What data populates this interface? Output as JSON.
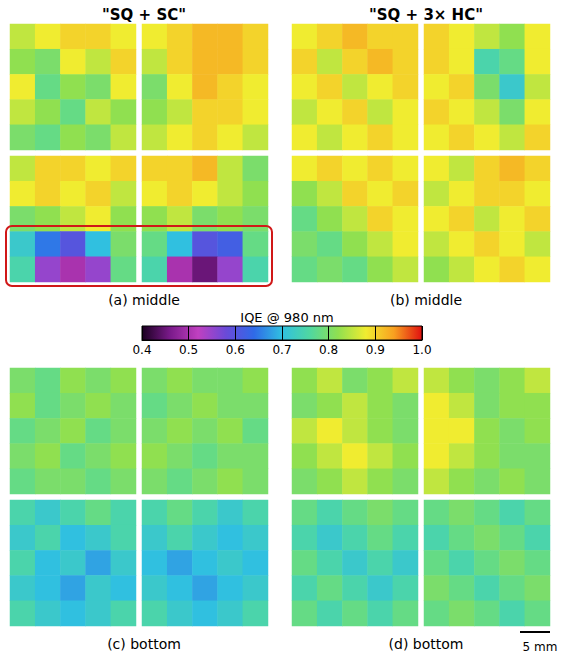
{
  "chart_data": {
    "type": "heatmap",
    "column_titles": [
      "\"SQ + SC\"",
      "\"SQ + 3× HC\""
    ],
    "panels": [
      {
        "label": "(a) middle",
        "cells": [
          [
            [
              0.85,
              0.88,
              0.9,
              0.9,
              0.88
            ],
            [
              0.82,
              0.8,
              0.88,
              0.85,
              0.9
            ],
            [
              0.88,
              0.78,
              0.82,
              0.8,
              0.88
            ],
            [
              0.85,
              0.82,
              0.78,
              0.85,
              0.82
            ],
            [
              0.8,
              0.78,
              0.82,
              0.8,
              0.85
            ]
          ],
          [
            [
              0.88,
              0.9,
              0.92,
              0.92,
              0.9
            ],
            [
              0.85,
              0.9,
              0.92,
              0.92,
              0.9
            ],
            [
              0.8,
              0.88,
              0.92,
              0.9,
              0.88
            ],
            [
              0.82,
              0.85,
              0.9,
              0.9,
              0.88
            ],
            [
              0.85,
              0.88,
              0.9,
              0.88,
              0.85
            ]
          ],
          [
            [
              0.85,
              0.9,
              0.9,
              0.88,
              0.9
            ],
            [
              0.88,
              0.9,
              0.88,
              0.9,
              0.85
            ],
            [
              0.8,
              0.82,
              0.85,
              0.88,
              0.82
            ],
            [
              0.72,
              0.65,
              0.6,
              0.7,
              0.8
            ],
            [
              0.75,
              0.55,
              0.5,
              0.55,
              0.78
            ]
          ],
          [
            [
              0.9,
              0.9,
              0.92,
              0.85,
              0.8
            ],
            [
              0.88,
              0.9,
              0.88,
              0.85,
              0.82
            ],
            [
              0.82,
              0.85,
              0.8,
              0.82,
              0.8
            ],
            [
              0.78,
              0.7,
              0.6,
              0.62,
              0.78
            ],
            [
              0.75,
              0.5,
              0.45,
              0.55,
              0.75
            ]
          ]
        ]
      },
      {
        "label": "(b) middle",
        "cells": [
          [
            [
              0.88,
              0.9,
              0.92,
              0.9,
              0.9
            ],
            [
              0.9,
              0.85,
              0.9,
              0.92,
              0.9
            ],
            [
              0.88,
              0.9,
              0.85,
              0.88,
              0.9
            ],
            [
              0.85,
              0.88,
              0.9,
              0.85,
              0.88
            ],
            [
              0.88,
              0.85,
              0.88,
              0.9,
              0.88
            ]
          ],
          [
            [
              0.9,
              0.88,
              0.85,
              0.82,
              0.88
            ],
            [
              0.9,
              0.88,
              0.75,
              0.78,
              0.88
            ],
            [
              0.88,
              0.9,
              0.8,
              0.72,
              0.85
            ],
            [
              0.9,
              0.88,
              0.85,
              0.8,
              0.88
            ],
            [
              0.88,
              0.9,
              0.88,
              0.85,
              0.9
            ]
          ],
          [
            [
              0.88,
              0.9,
              0.88,
              0.9,
              0.88
            ],
            [
              0.82,
              0.85,
              0.9,
              0.88,
              0.9
            ],
            [
              0.78,
              0.82,
              0.85,
              0.9,
              0.88
            ],
            [
              0.8,
              0.78,
              0.82,
              0.85,
              0.88
            ],
            [
              0.78,
              0.8,
              0.78,
              0.82,
              0.85
            ]
          ],
          [
            [
              0.88,
              0.85,
              0.9,
              0.92,
              0.9
            ],
            [
              0.85,
              0.88,
              0.9,
              0.9,
              0.88
            ],
            [
              0.88,
              0.9,
              0.85,
              0.88,
              0.9
            ],
            [
              0.85,
              0.88,
              0.9,
              0.88,
              0.85
            ],
            [
              0.82,
              0.85,
              0.88,
              0.9,
              0.88
            ]
          ]
        ]
      },
      {
        "label": "(c) bottom",
        "cells": [
          [
            [
              0.8,
              0.78,
              0.82,
              0.8,
              0.82
            ],
            [
              0.82,
              0.78,
              0.8,
              0.82,
              0.8
            ],
            [
              0.78,
              0.8,
              0.82,
              0.78,
              0.8
            ],
            [
              0.8,
              0.82,
              0.78,
              0.8,
              0.82
            ],
            [
              0.78,
              0.8,
              0.8,
              0.78,
              0.8
            ]
          ],
          [
            [
              0.8,
              0.82,
              0.8,
              0.8,
              0.82
            ],
            [
              0.78,
              0.8,
              0.82,
              0.8,
              0.8
            ],
            [
              0.8,
              0.82,
              0.8,
              0.82,
              0.78
            ],
            [
              0.82,
              0.8,
              0.78,
              0.8,
              0.8
            ],
            [
              0.8,
              0.78,
              0.8,
              0.82,
              0.8
            ]
          ],
          [
            [
              0.75,
              0.72,
              0.75,
              0.78,
              0.75
            ],
            [
              0.72,
              0.75,
              0.7,
              0.72,
              0.75
            ],
            [
              0.75,
              0.7,
              0.72,
              0.68,
              0.72
            ],
            [
              0.72,
              0.7,
              0.68,
              0.72,
              0.7
            ],
            [
              0.75,
              0.72,
              0.7,
              0.72,
              0.75
            ]
          ],
          [
            [
              0.75,
              0.78,
              0.75,
              0.72,
              0.75
            ],
            [
              0.72,
              0.75,
              0.72,
              0.7,
              0.72
            ],
            [
              0.7,
              0.68,
              0.7,
              0.72,
              0.7
            ],
            [
              0.72,
              0.7,
              0.68,
              0.7,
              0.72
            ],
            [
              0.75,
              0.72,
              0.7,
              0.72,
              0.75
            ]
          ]
        ]
      },
      {
        "label": "(d) bottom",
        "cells": [
          [
            [
              0.82,
              0.85,
              0.8,
              0.82,
              0.85
            ],
            [
              0.8,
              0.82,
              0.85,
              0.82,
              0.8
            ],
            [
              0.85,
              0.88,
              0.85,
              0.82,
              0.8
            ],
            [
              0.82,
              0.85,
              0.88,
              0.85,
              0.82
            ],
            [
              0.8,
              0.82,
              0.85,
              0.82,
              0.8
            ]
          ],
          [
            [
              0.85,
              0.82,
              0.8,
              0.82,
              0.85
            ],
            [
              0.88,
              0.85,
              0.8,
              0.82,
              0.82
            ],
            [
              0.88,
              0.88,
              0.82,
              0.8,
              0.82
            ],
            [
              0.88,
              0.85,
              0.82,
              0.8,
              0.8
            ],
            [
              0.85,
              0.82,
              0.8,
              0.82,
              0.8
            ]
          ],
          [
            [
              0.78,
              0.75,
              0.78,
              0.8,
              0.78
            ],
            [
              0.75,
              0.72,
              0.75,
              0.78,
              0.75
            ],
            [
              0.78,
              0.75,
              0.72,
              0.75,
              0.72
            ],
            [
              0.75,
              0.78,
              0.75,
              0.72,
              0.75
            ],
            [
              0.78,
              0.75,
              0.78,
              0.75,
              0.78
            ]
          ],
          [
            [
              0.78,
              0.8,
              0.78,
              0.75,
              0.78
            ],
            [
              0.75,
              0.78,
              0.8,
              0.78,
              0.75
            ],
            [
              0.78,
              0.75,
              0.78,
              0.8,
              0.78
            ],
            [
              0.8,
              0.78,
              0.75,
              0.78,
              0.8
            ],
            [
              0.78,
              0.8,
              0.78,
              0.75,
              0.78
            ]
          ]
        ]
      }
    ],
    "colorbar": {
      "title": "IQE @ 980 nm",
      "range": [
        0.4,
        1.0
      ],
      "ticks": [
        0.4,
        0.5,
        0.6,
        0.7,
        0.8,
        0.9,
        {
          "value": 1.0,
          "label": "1.0"
        }
      ]
    },
    "annotations": [
      "5 mm"
    ]
  }
}
